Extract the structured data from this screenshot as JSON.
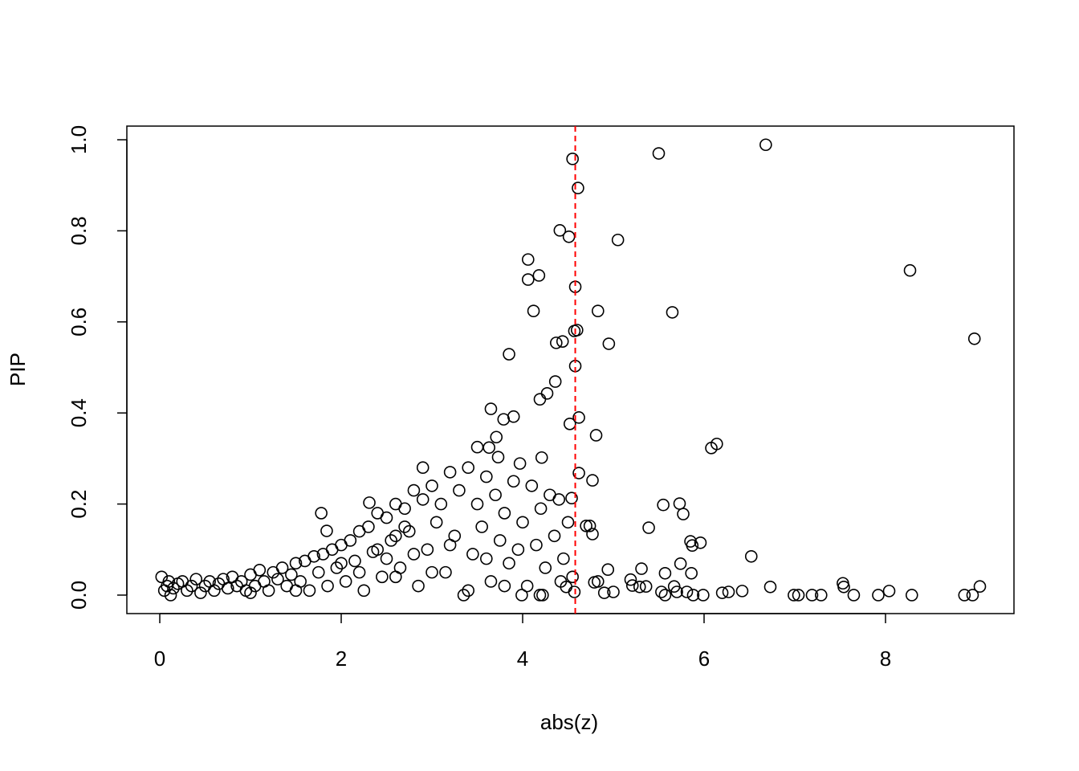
{
  "chart_data": {
    "type": "scatter",
    "x_label": "abs(z)",
    "y_label": "PIP",
    "xlim": [
      -0.363,
      9.416
    ],
    "ylim": [
      -0.0406,
      1.03
    ],
    "xticks": [
      0,
      2,
      4,
      6,
      8
    ],
    "yticks": [
      {
        "value": 0,
        "label": "0.0"
      },
      {
        "value": 0.2,
        "label": "0.2"
      },
      {
        "value": 0.4,
        "label": "0.4"
      },
      {
        "value": 0.6,
        "label": "0.6"
      },
      {
        "value": 0.8,
        "label": "0.8"
      },
      {
        "value": 1,
        "label": "1.0"
      }
    ],
    "color": "#000000",
    "vline": {
      "value": 4.58,
      "color": "#ff0000"
    },
    "x": [
      4.55,
      4.61,
      5.5,
      6.68,
      8.27,
      8.98,
      5.05,
      4.41,
      4.51,
      4.06,
      4.18,
      4.06,
      4.58,
      4.12,
      4.83,
      5.65,
      4.57,
      4.6,
      4.95,
      4.37,
      4.44,
      3.85,
      4.58,
      4.36,
      4.27,
      4.19,
      3.65,
      3.9,
      3.79,
      4.62,
      4.52,
      4.81,
      3.71,
      6.14,
      6.08,
      3.5,
      3.63,
      3.73,
      4.21,
      3.97,
      4.62,
      4.77,
      4.54,
      5.73,
      5.55,
      5.77,
      5.39,
      4.74,
      4.7,
      4.77,
      5.85,
      5.96,
      5.87,
      6.52,
      5.74,
      5.86,
      5.57,
      5.31,
      4.94,
      5.19,
      5.21,
      5.29,
      5.36,
      5.67,
      5.53,
      5.57,
      5.7,
      5.81,
      5.88,
      5.99,
      6.2,
      6.27,
      6.42,
      6.73,
      6.99,
      7.04,
      7.19,
      7.29,
      7.53,
      7.54,
      7.65,
      7.92,
      8.04,
      8.29,
      8.87,
      8.96,
      9.04,
      5.0,
      4.9,
      4.79,
      4.83,
      4.57,
      4.48,
      4.19,
      4.22,
      3.99,
      1.78,
      1.84,
      2.31,
      2.9,
      0.02,
      0.05,
      0.08,
      0.1,
      0.12,
      0.15,
      0.2,
      0.25,
      0.3,
      0.35,
      0.4,
      0.45,
      0.5,
      0.55,
      0.6,
      0.65,
      0.7,
      0.75,
      0.8,
      0.85,
      0.9,
      0.95,
      1.0,
      1.05,
      1.1,
      1.15,
      1.2,
      1.25,
      1.3,
      1.35,
      1.4,
      1.45,
      1.5,
      1.55,
      1.6,
      1.65,
      1.7,
      1.75,
      1.8,
      1.85,
      1.9,
      1.95,
      2.0,
      2.05,
      2.1,
      2.15,
      2.2,
      2.25,
      2.3,
      2.35,
      2.4,
      2.45,
      2.5,
      2.55,
      2.6,
      2.65,
      2.7,
      2.75,
      2.8,
      2.85,
      2.9,
      2.95,
      3.0,
      3.05,
      3.1,
      3.15,
      3.2,
      3.25,
      3.3,
      3.35,
      3.4,
      3.45,
      3.5,
      3.55,
      3.6,
      3.65,
      3.7,
      3.75,
      3.8,
      3.85,
      3.9,
      3.95,
      4.0,
      4.05,
      4.1,
      4.15,
      4.2,
      4.25,
      4.3,
      4.35,
      4.4,
      4.45,
      4.5,
      4.55,
      4.42,
      2.2,
      2.4,
      2.6,
      2.8,
      3.0,
      3.2,
      1.5,
      1.0,
      2.0,
      2.6,
      2.7,
      2.5,
      3.4,
      3.6,
      3.8
    ],
    "values": [
      0.958,
      0.894,
      0.97,
      0.989,
      0.713,
      0.563,
      0.78,
      0.801,
      0.787,
      0.737,
      0.702,
      0.693,
      0.677,
      0.624,
      0.624,
      0.621,
      0.58,
      0.582,
      0.552,
      0.554,
      0.557,
      0.529,
      0.503,
      0.469,
      0.443,
      0.43,
      0.409,
      0.392,
      0.386,
      0.39,
      0.376,
      0.351,
      0.347,
      0.332,
      0.323,
      0.325,
      0.324,
      0.303,
      0.302,
      0.289,
      0.268,
      0.252,
      0.213,
      0.201,
      0.198,
      0.178,
      0.148,
      0.152,
      0.152,
      0.134,
      0.118,
      0.115,
      0.109,
      0.085,
      0.069,
      0.048,
      0.048,
      0.058,
      0.056,
      0.034,
      0.021,
      0.018,
      0.019,
      0.019,
      0.007,
      0,
      0.007,
      0.007,
      0,
      0,
      0.005,
      0.007,
      0.009,
      0.018,
      0,
      0,
      0,
      0,
      0.026,
      0.018,
      0,
      0,
      0.009,
      0,
      0,
      0,
      0.019,
      0.007,
      0.005,
      0.028,
      0.03,
      0.007,
      0.018,
      0,
      0,
      0,
      0.18,
      0.141,
      0.203,
      0.28,
      0.04,
      0.01,
      0.02,
      0.03,
      0,
      0.015,
      0.025,
      0.03,
      0.01,
      0.02,
      0.035,
      0.005,
      0.02,
      0.03,
      0.01,
      0.025,
      0.035,
      0.015,
      0.04,
      0.02,
      0.03,
      0.01,
      0.045,
      0.02,
      0.055,
      0.03,
      0.01,
      0.05,
      0.035,
      0.06,
      0.02,
      0.045,
      0.07,
      0.03,
      0.075,
      0.01,
      0.085,
      0.05,
      0.09,
      0.02,
      0.1,
      0.06,
      0.11,
      0.03,
      0.12,
      0.075,
      0.14,
      0.01,
      0.15,
      0.095,
      0.18,
      0.04,
      0.17,
      0.12,
      0.2,
      0.06,
      0.19,
      0.14,
      0.23,
      0.02,
      0.21,
      0.1,
      0.24,
      0.16,
      0.2,
      0.05,
      0.27,
      0.13,
      0.23,
      0,
      0.28,
      0.09,
      0.2,
      0.15,
      0.26,
      0.03,
      0.22,
      0.12,
      0.18,
      0.07,
      0.25,
      0.1,
      0.16,
      0.02,
      0.24,
      0.11,
      0.19,
      0.06,
      0.22,
      0.13,
      0.21,
      0.08,
      0.16,
      0.04,
      0.03,
      0.05,
      0.1,
      0.13,
      0.09,
      0.05,
      0.11,
      0.01,
      0.005,
      0.07,
      0.04,
      0.15,
      0.08,
      0.01,
      0.08,
      0.02
    ]
  }
}
